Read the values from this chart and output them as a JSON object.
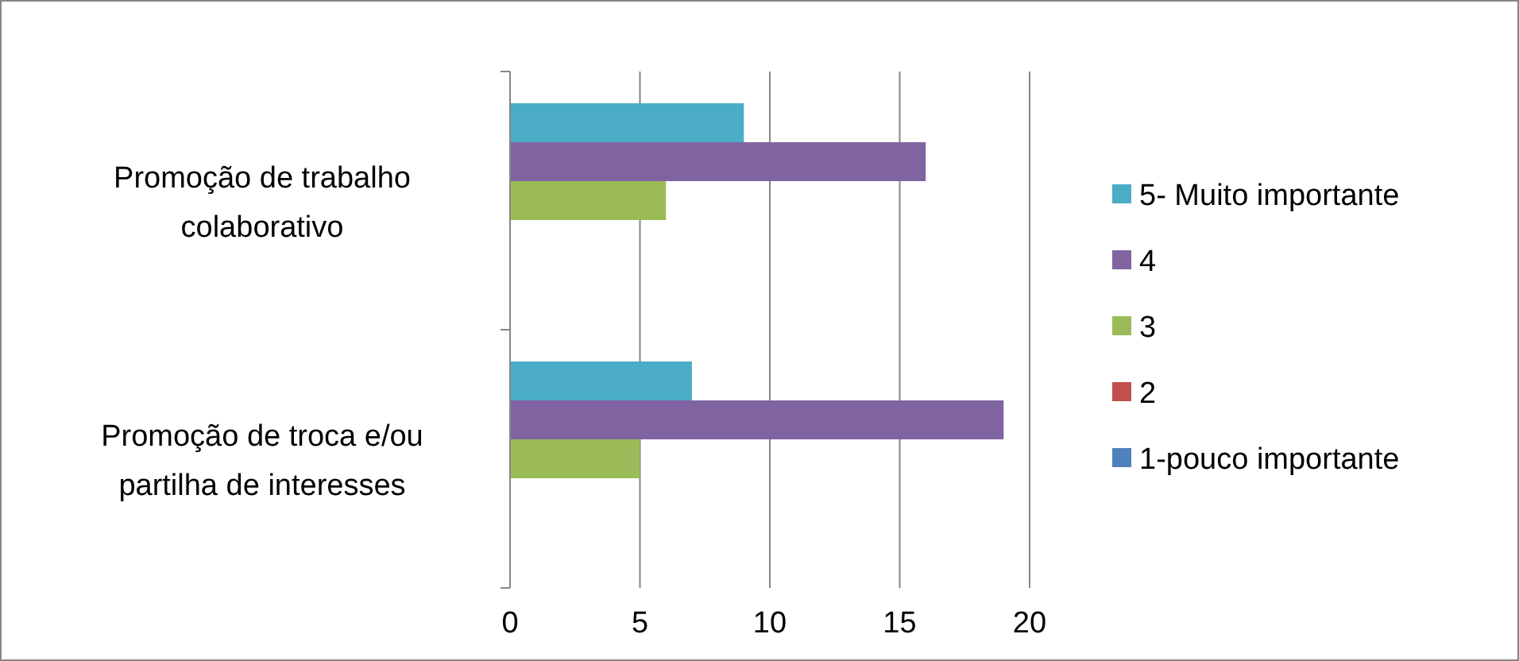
{
  "chart_data": {
    "type": "bar",
    "orientation": "horizontal",
    "categories": [
      "Promoção de trabalho colaborativo",
      "Promoção de troca e/ou partilha de interesses"
    ],
    "series": [
      {
        "name": "1-pouco importante",
        "color": "#4f81bd",
        "values": [
          0,
          0
        ]
      },
      {
        "name": "2",
        "color": "#c0504d",
        "values": [
          0,
          0
        ]
      },
      {
        "name": "3",
        "color": "#9bbb59",
        "values": [
          6,
          5
        ]
      },
      {
        "name": "4",
        "color": "#8064a2",
        "values": [
          16,
          19
        ]
      },
      {
        "name": "5- Muito importante",
        "color": "#4bacc6",
        "values": [
          9,
          7
        ]
      }
    ],
    "xlim": [
      0,
      20
    ],
    "xticks": [
      0,
      5,
      10,
      15,
      20
    ],
    "grid": "x",
    "legend": "right"
  }
}
